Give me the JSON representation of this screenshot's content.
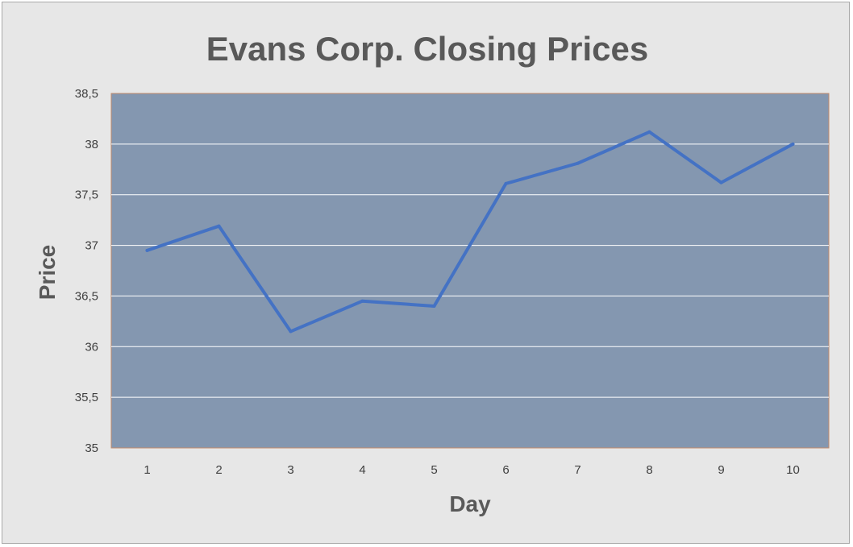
{
  "chart_data": {
    "type": "line",
    "title": "Evans Corp. Closing Prices",
    "xlabel": "Day",
    "ylabel": "Price",
    "x": [
      1,
      2,
      3,
      4,
      5,
      6,
      7,
      8,
      9,
      10
    ],
    "x_tick_labels": [
      "1",
      "2",
      "3",
      "4",
      "5",
      "6",
      "7",
      "8",
      "9",
      "10"
    ],
    "y_tick_labels": [
      "35",
      "35,5",
      "36",
      "36,5",
      "37",
      "37,5",
      "38",
      "38,5"
    ],
    "y_ticks": [
      35,
      35.5,
      36,
      36.5,
      37,
      37.5,
      38,
      38.5
    ],
    "ylim": [
      35,
      38.5
    ],
    "series": [
      {
        "values": [
          36.95,
          37.19,
          36.15,
          36.45,
          36.4,
          37.61,
          37.81,
          38.12,
          37.62,
          38.0
        ],
        "color": "#4472c4"
      }
    ],
    "grid": true,
    "legend": "none"
  },
  "colors": {
    "frame_background": "#e7e7e7",
    "plot_background": "#8497b0",
    "gridline": "#ffffff",
    "line": "#4472c4",
    "title": "#595959"
  }
}
